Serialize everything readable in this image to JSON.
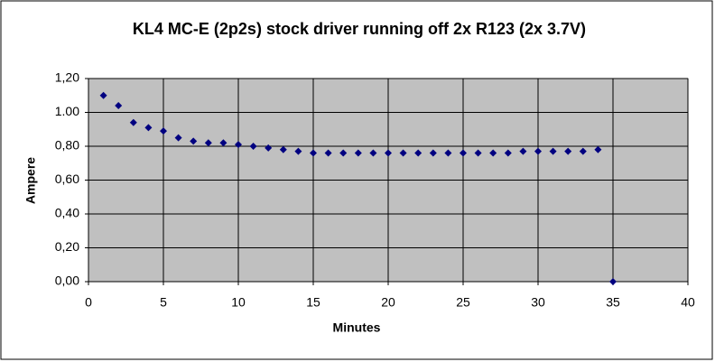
{
  "chart_data": {
    "type": "scatter",
    "title": "KL4  MC-E (2p2s) stock driver running off 2x R123 (2x 3.7V)",
    "x_label": "Minutes",
    "y_label": "Ampere",
    "x": [
      1,
      2,
      3,
      4,
      5,
      6,
      7,
      8,
      9,
      10,
      11,
      12,
      13,
      14,
      15,
      16,
      17,
      18,
      19,
      20,
      21,
      22,
      23,
      24,
      25,
      26,
      27,
      28,
      29,
      30,
      31,
      32,
      33,
      34,
      35
    ],
    "values": [
      1.1,
      1.04,
      0.94,
      0.91,
      0.89,
      0.85,
      0.83,
      0.82,
      0.82,
      0.81,
      0.8,
      0.79,
      0.78,
      0.77,
      0.76,
      0.76,
      0.76,
      0.76,
      0.76,
      0.76,
      0.76,
      0.76,
      0.76,
      0.76,
      0.76,
      0.76,
      0.76,
      0.76,
      0.77,
      0.77,
      0.77,
      0.77,
      0.77,
      0.78,
      0
    ],
    "color": "#000080",
    "xlim": [
      0,
      40
    ],
    "xticks": [
      0,
      5,
      10,
      15,
      20,
      25,
      30,
      35,
      40
    ],
    "ylim": [
      0,
      1.2
    ],
    "yticks": [
      {
        "value": 0,
        "label": "0,00"
      },
      {
        "value": 0.2,
        "label": "0,20"
      },
      {
        "value": 0.4,
        "label": "0,40"
      },
      {
        "value": 0.6,
        "label": "0,60"
      },
      {
        "value": 0.8,
        "label": "0,80"
      },
      {
        "value": 1.0,
        "label": "1.00"
      },
      {
        "value": 1.2,
        "label": "1,20"
      }
    ],
    "grid": true,
    "plot_background": "#c0c0c0"
  }
}
